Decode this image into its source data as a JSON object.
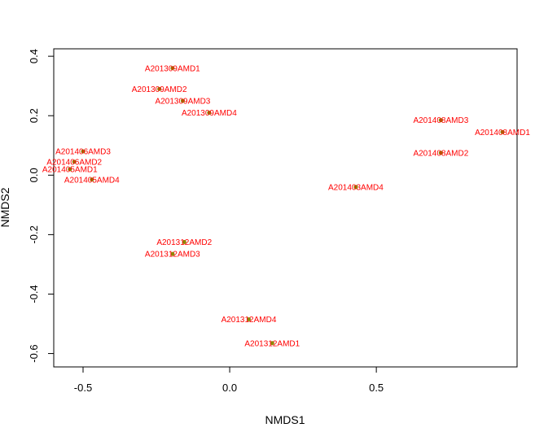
{
  "chart_data": {
    "type": "scatter",
    "title": "",
    "xlabel": "NMDS1",
    "ylabel": "NMDS2",
    "xlim": [
      -0.6,
      0.98
    ],
    "ylim": [
      -0.645,
      0.425
    ],
    "xticks": [
      -0.5,
      0.0,
      0.5
    ],
    "xtick_labels": [
      "-0.5",
      "0.0",
      "0.5"
    ],
    "yticks": [
      -0.6,
      -0.4,
      -0.2,
      0.0,
      0.2,
      0.4
    ],
    "ytick_labels": [
      "-0.6",
      "-0.4",
      "-0.2",
      "0.0",
      "0.2",
      "0.4"
    ],
    "grid": false,
    "label_color": "#ff0000",
    "point_color": "#8b8b00",
    "points": [
      {
        "label": "A201309AMD1",
        "x": -0.195,
        "y": 0.36
      },
      {
        "label": "A201309AMD2",
        "x": -0.24,
        "y": 0.29
      },
      {
        "label": "A201309AMD3",
        "x": -0.16,
        "y": 0.25
      },
      {
        "label": "A201309AMD4",
        "x": -0.07,
        "y": 0.21
      },
      {
        "label": "A201406AMD3",
        "x": -0.5,
        "y": 0.08
      },
      {
        "label": "A201406AMD2",
        "x": -0.53,
        "y": 0.045
      },
      {
        "label": "A201405AMD1",
        "x": -0.545,
        "y": 0.02
      },
      {
        "label": "A201405AMD4",
        "x": -0.47,
        "y": -0.015
      },
      {
        "label": "A201403AMD4",
        "x": 0.43,
        "y": -0.04
      },
      {
        "label": "A201408AMD3",
        "x": 0.72,
        "y": 0.185
      },
      {
        "label": "A201408AMD2",
        "x": 0.72,
        "y": 0.075
      },
      {
        "label": "A201408AMD1",
        "x": 0.93,
        "y": 0.145
      },
      {
        "label": "A201312AMD2",
        "x": -0.155,
        "y": -0.225
      },
      {
        "label": "A201312AMD3",
        "x": -0.195,
        "y": -0.265
      },
      {
        "label": "A201312AMD4",
        "x": 0.065,
        "y": -0.485
      },
      {
        "label": "A201312AMD1",
        "x": 0.145,
        "y": -0.565
      }
    ]
  }
}
